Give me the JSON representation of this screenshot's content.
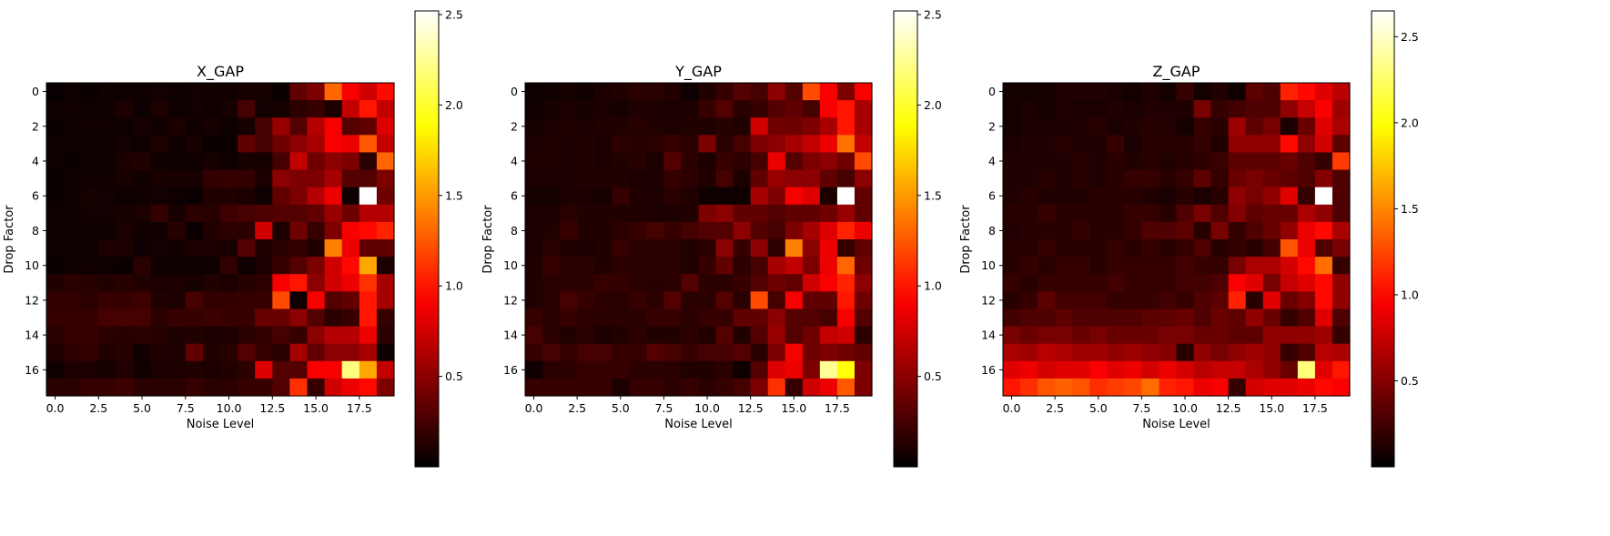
{
  "chart_data": [
    {
      "type": "heatmap",
      "title": "X_GAP",
      "xlabel": "Noise Level",
      "ylabel": "Drop Factor",
      "x_ticks": [
        "0.0",
        "2.5",
        "5.0",
        "7.5",
        "10.0",
        "12.5",
        "15.0",
        "17.5"
      ],
      "y_ticks": [
        "0",
        "2",
        "4",
        "6",
        "8",
        "10",
        "12",
        "14",
        "16"
      ],
      "colormap": "hot",
      "colorbar": {
        "min": 0.0,
        "max": 2.52,
        "ticks": [
          "0.5",
          "1.0",
          "1.5",
          "2.0",
          "2.5"
        ]
      },
      "values": [
        [
          0.03,
          0.05,
          0.04,
          0.06,
          0.05,
          0.05,
          0.07,
          0.05,
          0.07,
          0.06,
          0.06,
          0.09,
          0.08,
          0.04,
          0.35,
          0.45,
          1.3,
          0.9,
          0.75,
          0.95
        ],
        [
          0.05,
          0.06,
          0.05,
          0.06,
          0.1,
          0.05,
          0.1,
          0.05,
          0.07,
          0.05,
          0.08,
          0.25,
          0.07,
          0.08,
          0.15,
          0.2,
          0.1,
          0.7,
          1.0,
          0.7
        ],
        [
          0.04,
          0.05,
          0.06,
          0.06,
          0.05,
          0.08,
          0.05,
          0.1,
          0.05,
          0.08,
          0.05,
          0.08,
          0.25,
          0.55,
          0.3,
          0.65,
          0.9,
          0.3,
          0.35,
          0.8
        ],
        [
          0.05,
          0.05,
          0.05,
          0.05,
          0.07,
          0.05,
          0.1,
          0.05,
          0.08,
          0.04,
          0.04,
          0.35,
          0.25,
          0.4,
          0.5,
          0.6,
          0.9,
          0.85,
          1.25,
          0.7
        ],
        [
          0.05,
          0.04,
          0.05,
          0.05,
          0.1,
          0.12,
          0.06,
          0.05,
          0.05,
          0.08,
          0.05,
          0.08,
          0.08,
          0.25,
          0.7,
          0.4,
          0.5,
          0.45,
          0.15,
          1.3
        ],
        [
          0.04,
          0.05,
          0.06,
          0.06,
          0.08,
          0.06,
          0.09,
          0.09,
          0.08,
          0.18,
          0.2,
          0.18,
          0.1,
          0.5,
          0.45,
          0.45,
          0.6,
          0.3,
          0.3,
          0.45
        ],
        [
          0.04,
          0.05,
          0.08,
          0.07,
          0.05,
          0.06,
          0.07,
          0.05,
          0.04,
          0.12,
          0.12,
          0.1,
          0.05,
          0.35,
          0.45,
          0.65,
          0.85,
          0.05,
          2.52,
          0.4
        ],
        [
          0.05,
          0.05,
          0.07,
          0.07,
          0.08,
          0.1,
          0.18,
          0.08,
          0.16,
          0.14,
          0.22,
          0.25,
          0.28,
          0.3,
          0.3,
          0.35,
          0.55,
          0.4,
          0.65,
          0.65
        ],
        [
          0.05,
          0.05,
          0.05,
          0.05,
          0.1,
          0.06,
          0.06,
          0.14,
          0.04,
          0.12,
          0.16,
          0.16,
          0.75,
          0.1,
          0.4,
          0.2,
          0.45,
          0.9,
          0.95,
          1.05
        ],
        [
          0.05,
          0.05,
          0.05,
          0.1,
          0.1,
          0.05,
          0.07,
          0.06,
          0.1,
          0.1,
          0.08,
          0.3,
          0.12,
          0.15,
          0.18,
          0.12,
          1.4,
          0.85,
          0.35,
          0.35
        ],
        [
          0.04,
          0.05,
          0.06,
          0.05,
          0.04,
          0.15,
          0.06,
          0.05,
          0.05,
          0.05,
          0.18,
          0.05,
          0.1,
          0.2,
          0.3,
          0.45,
          0.75,
          0.95,
          1.55,
          0.1
        ],
        [
          0.12,
          0.15,
          0.14,
          0.12,
          0.14,
          0.12,
          0.1,
          0.1,
          0.08,
          0.12,
          0.1,
          0.14,
          0.16,
          0.9,
          1.0,
          0.5,
          0.75,
          0.85,
          1.1,
          0.6
        ],
        [
          0.18,
          0.18,
          0.15,
          0.2,
          0.2,
          0.22,
          0.12,
          0.1,
          0.25,
          0.18,
          0.18,
          0.2,
          0.2,
          1.2,
          0.05,
          0.9,
          0.3,
          0.35,
          1.0,
          0.6
        ],
        [
          0.2,
          0.2,
          0.2,
          0.25,
          0.25,
          0.25,
          0.15,
          0.2,
          0.2,
          0.22,
          0.2,
          0.2,
          0.38,
          0.38,
          0.5,
          0.3,
          0.15,
          0.2,
          1.0,
          0.2
        ],
        [
          0.15,
          0.2,
          0.2,
          0.15,
          0.14,
          0.15,
          0.14,
          0.1,
          0.12,
          0.1,
          0.1,
          0.15,
          0.18,
          0.25,
          0.2,
          0.5,
          0.65,
          0.65,
          0.85,
          0.15
        ],
        [
          0.12,
          0.16,
          0.18,
          0.12,
          0.14,
          0.06,
          0.12,
          0.1,
          0.35,
          0.12,
          0.14,
          0.3,
          0.2,
          0.15,
          0.6,
          0.35,
          0.5,
          0.5,
          0.6,
          0.05
        ],
        [
          0.05,
          0.1,
          0.1,
          0.08,
          0.12,
          0.06,
          0.1,
          0.1,
          0.12,
          0.1,
          0.12,
          0.15,
          0.8,
          0.3,
          0.3,
          0.9,
          0.9,
          2.2,
          1.55,
          0.7
        ],
        [
          0.15,
          0.15,
          0.2,
          0.2,
          0.22,
          0.15,
          0.15,
          0.15,
          0.2,
          0.15,
          0.15,
          0.2,
          0.2,
          0.3,
          1.1,
          0.2,
          0.75,
          0.85,
          0.95,
          0.45
        ]
      ]
    },
    {
      "type": "heatmap",
      "title": "Y_GAP",
      "xlabel": "Noise Level",
      "ylabel": "Drop Factor",
      "x_ticks": [
        "0.0",
        "2.5",
        "5.0",
        "7.5",
        "10.0",
        "12.5",
        "15.0",
        "17.5"
      ],
      "y_ticks": [
        "0",
        "2",
        "4",
        "6",
        "8",
        "10",
        "12",
        "14",
        "16"
      ],
      "colormap": "hot",
      "colorbar": {
        "min": 0.0,
        "max": 2.52,
        "ticks": [
          "0.5",
          "1.0",
          "1.5",
          "2.0",
          "2.5"
        ]
      },
      "values": [
        [
          0.05,
          0.06,
          0.08,
          0.06,
          0.1,
          0.12,
          0.15,
          0.15,
          0.12,
          0.05,
          0.12,
          0.2,
          0.3,
          0.25,
          0.5,
          0.3,
          1.2,
          0.9,
          0.45,
          0.9
        ],
        [
          0.06,
          0.08,
          0.1,
          0.08,
          0.1,
          0.08,
          0.12,
          0.1,
          0.1,
          0.1,
          0.2,
          0.3,
          0.15,
          0.2,
          0.3,
          0.35,
          0.25,
          0.9,
          1.0,
          0.6
        ],
        [
          0.08,
          0.1,
          0.12,
          0.1,
          0.12,
          0.12,
          0.14,
          0.12,
          0.1,
          0.12,
          0.12,
          0.14,
          0.12,
          0.75,
          0.4,
          0.4,
          0.45,
          0.6,
          1.0,
          0.6
        ],
        [
          0.1,
          0.12,
          0.1,
          0.12,
          0.1,
          0.15,
          0.14,
          0.15,
          0.2,
          0.16,
          0.45,
          0.15,
          0.25,
          0.45,
          0.5,
          0.6,
          0.7,
          0.85,
          1.35,
          0.7
        ],
        [
          0.12,
          0.12,
          0.1,
          0.12,
          0.1,
          0.12,
          0.14,
          0.1,
          0.3,
          0.15,
          0.1,
          0.2,
          0.15,
          0.25,
          0.85,
          0.3,
          0.45,
          0.5,
          0.4,
          1.2
        ],
        [
          0.1,
          0.1,
          0.1,
          0.12,
          0.12,
          0.12,
          0.1,
          0.1,
          0.2,
          0.16,
          0.12,
          0.25,
          0.1,
          0.35,
          0.55,
          0.5,
          0.5,
          0.35,
          0.25,
          0.5
        ],
        [
          0.08,
          0.08,
          0.1,
          0.1,
          0.08,
          0.2,
          0.12,
          0.1,
          0.15,
          0.12,
          0.05,
          0.05,
          0.05,
          0.6,
          0.45,
          0.9,
          0.8,
          0.1,
          2.52,
          0.35
        ],
        [
          0.1,
          0.1,
          0.15,
          0.12,
          0.12,
          0.12,
          0.12,
          0.1,
          0.1,
          0.12,
          0.45,
          0.5,
          0.35,
          0.35,
          0.3,
          0.35,
          0.35,
          0.4,
          0.55,
          0.35
        ],
        [
          0.1,
          0.12,
          0.2,
          0.12,
          0.12,
          0.15,
          0.2,
          0.25,
          0.2,
          0.25,
          0.3,
          0.3,
          0.5,
          0.3,
          0.25,
          0.45,
          0.6,
          0.8,
          1.05,
          0.85
        ],
        [
          0.1,
          0.15,
          0.12,
          0.1,
          0.12,
          0.2,
          0.15,
          0.15,
          0.15,
          0.12,
          0.15,
          0.5,
          0.2,
          0.5,
          0.15,
          1.4,
          0.5,
          0.85,
          0.2,
          0.35
        ],
        [
          0.12,
          0.2,
          0.15,
          0.15,
          0.12,
          0.15,
          0.15,
          0.15,
          0.15,
          0.12,
          0.2,
          0.35,
          0.15,
          0.25,
          0.6,
          0.7,
          0.45,
          0.85,
          1.3,
          0.4
        ],
        [
          0.12,
          0.15,
          0.15,
          0.15,
          0.2,
          0.18,
          0.15,
          0.14,
          0.15,
          0.3,
          0.15,
          0.15,
          0.2,
          0.3,
          0.4,
          0.35,
          0.75,
          0.9,
          1.05,
          0.5
        ],
        [
          0.12,
          0.15,
          0.25,
          0.2,
          0.15,
          0.15,
          0.2,
          0.15,
          0.3,
          0.15,
          0.15,
          0.3,
          0.15,
          1.2,
          0.25,
          0.9,
          0.35,
          0.35,
          1.0,
          0.4
        ],
        [
          0.2,
          0.15,
          0.2,
          0.15,
          0.15,
          0.15,
          0.15,
          0.2,
          0.2,
          0.15,
          0.2,
          0.2,
          0.35,
          0.35,
          0.5,
          0.3,
          0.3,
          0.25,
          0.9,
          0.3
        ],
        [
          0.25,
          0.15,
          0.12,
          0.15,
          0.1,
          0.12,
          0.15,
          0.12,
          0.12,
          0.15,
          0.12,
          0.3,
          0.12,
          0.3,
          0.55,
          0.3,
          0.4,
          0.7,
          0.75,
          0.15
        ],
        [
          0.2,
          0.25,
          0.2,
          0.25,
          0.25,
          0.2,
          0.2,
          0.3,
          0.25,
          0.2,
          0.25,
          0.25,
          0.3,
          0.15,
          0.45,
          0.9,
          0.4,
          0.45,
          0.4,
          0.35
        ],
        [
          0.05,
          0.15,
          0.15,
          0.2,
          0.2,
          0.2,
          0.15,
          0.15,
          0.15,
          0.12,
          0.12,
          0.15,
          0.05,
          0.3,
          0.8,
          0.85,
          0.45,
          2.25,
          1.9,
          0.45
        ],
        [
          0.2,
          0.2,
          0.2,
          0.2,
          0.2,
          0.1,
          0.2,
          0.2,
          0.15,
          0.2,
          0.15,
          0.2,
          0.25,
          0.45,
          1.1,
          0.2,
          0.75,
          0.85,
          1.25,
          0.45
        ]
      ]
    },
    {
      "type": "heatmap",
      "title": "Z_GAP",
      "xlabel": "Noise Level",
      "ylabel": "Drop Factor",
      "x_ticks": [
        "0.0",
        "2.5",
        "5.0",
        "7.5",
        "10.0",
        "12.5",
        "15.0",
        "17.5"
      ],
      "y_ticks": [
        "0",
        "2",
        "4",
        "6",
        "8",
        "10",
        "12",
        "14",
        "16"
      ],
      "colormap": "hot",
      "colorbar": {
        "min": 0.0,
        "max": 2.65,
        "ticks": [
          "0.5",
          "1.0",
          "1.5",
          "2.0",
          "2.5"
        ]
      },
      "values": [
        [
          0.08,
          0.08,
          0.08,
          0.12,
          0.12,
          0.12,
          0.1,
          0.08,
          0.12,
          0.08,
          0.2,
          0.08,
          0.12,
          0.06,
          0.35,
          0.3,
          1.1,
          1.0,
          0.85,
          0.7
        ],
        [
          0.08,
          0.1,
          0.08,
          0.12,
          0.1,
          0.1,
          0.12,
          0.1,
          0.12,
          0.12,
          0.12,
          0.45,
          0.2,
          0.25,
          0.3,
          0.3,
          0.55,
          0.75,
          0.95,
          0.6
        ],
        [
          0.08,
          0.1,
          0.1,
          0.1,
          0.12,
          0.15,
          0.1,
          0.12,
          0.15,
          0.14,
          0.08,
          0.2,
          0.15,
          0.6,
          0.35,
          0.45,
          0.1,
          0.4,
          0.85,
          0.65
        ],
        [
          0.1,
          0.12,
          0.12,
          0.15,
          0.12,
          0.12,
          0.2,
          0.1,
          0.15,
          0.15,
          0.15,
          0.2,
          0.12,
          0.55,
          0.55,
          0.55,
          1.0,
          0.55,
          0.8,
          0.35
        ],
        [
          0.12,
          0.12,
          0.12,
          0.12,
          0.15,
          0.12,
          0.15,
          0.12,
          0.15,
          0.12,
          0.15,
          0.18,
          0.22,
          0.35,
          0.35,
          0.35,
          0.4,
          0.3,
          0.2,
          1.2
        ],
        [
          0.12,
          0.12,
          0.15,
          0.12,
          0.15,
          0.12,
          0.15,
          0.2,
          0.2,
          0.15,
          0.2,
          0.35,
          0.2,
          0.4,
          0.45,
          0.4,
          0.35,
          0.3,
          0.5,
          0.3
        ],
        [
          0.12,
          0.15,
          0.12,
          0.12,
          0.12,
          0.15,
          0.15,
          0.15,
          0.12,
          0.1,
          0.15,
          0.1,
          0.15,
          0.55,
          0.45,
          0.55,
          0.85,
          0.2,
          2.65,
          0.3
        ],
        [
          0.15,
          0.15,
          0.2,
          0.15,
          0.15,
          0.15,
          0.15,
          0.2,
          0.2,
          0.15,
          0.3,
          0.45,
          0.3,
          0.5,
          0.35,
          0.4,
          0.4,
          0.65,
          0.55,
          0.3
        ],
        [
          0.12,
          0.15,
          0.15,
          0.15,
          0.2,
          0.15,
          0.15,
          0.2,
          0.3,
          0.3,
          0.35,
          0.15,
          0.45,
          0.2,
          0.3,
          0.4,
          0.55,
          0.9,
          1.0,
          0.65
        ],
        [
          0.15,
          0.15,
          0.2,
          0.15,
          0.15,
          0.15,
          0.2,
          0.15,
          0.2,
          0.15,
          0.2,
          0.3,
          0.15,
          0.2,
          0.15,
          0.25,
          1.3,
          0.9,
          0.3,
          0.45
        ],
        [
          0.15,
          0.2,
          0.15,
          0.2,
          0.2,
          0.15,
          0.2,
          0.2,
          0.2,
          0.2,
          0.25,
          0.2,
          0.2,
          0.45,
          0.65,
          0.65,
          0.8,
          1.0,
          1.4,
          0.2
        ],
        [
          0.2,
          0.15,
          0.2,
          0.2,
          0.2,
          0.2,
          0.25,
          0.2,
          0.2,
          0.2,
          0.25,
          0.25,
          0.3,
          0.95,
          0.85,
          0.45,
          0.75,
          0.85,
          1.0,
          0.55
        ],
        [
          0.15,
          0.2,
          0.35,
          0.25,
          0.25,
          0.25,
          0.2,
          0.2,
          0.2,
          0.25,
          0.2,
          0.3,
          0.35,
          1.1,
          0.15,
          0.85,
          0.4,
          0.5,
          1.0,
          0.55
        ],
        [
          0.25,
          0.3,
          0.3,
          0.35,
          0.3,
          0.3,
          0.3,
          0.3,
          0.35,
          0.35,
          0.4,
          0.3,
          0.4,
          0.35,
          0.55,
          0.4,
          0.2,
          0.3,
          0.85,
          0.3
        ],
        [
          0.45,
          0.4,
          0.45,
          0.45,
          0.4,
          0.45,
          0.4,
          0.4,
          0.4,
          0.45,
          0.45,
          0.4,
          0.4,
          0.35,
          0.35,
          0.55,
          0.55,
          0.55,
          0.6,
          0.2
        ],
        [
          0.65,
          0.6,
          0.7,
          0.65,
          0.6,
          0.6,
          0.55,
          0.6,
          0.55,
          0.5,
          0.15,
          0.55,
          0.45,
          0.55,
          0.6,
          0.55,
          0.2,
          0.3,
          0.7,
          0.65
        ],
        [
          0.85,
          0.9,
          0.8,
          0.85,
          0.85,
          0.95,
          0.85,
          0.9,
          0.8,
          0.9,
          0.8,
          0.7,
          0.75,
          0.75,
          0.65,
          0.55,
          0.4,
          2.3,
          0.85,
          1.05
        ],
        [
          1.05,
          1.15,
          1.3,
          1.35,
          1.3,
          1.15,
          1.2,
          1.25,
          1.4,
          1.1,
          1.05,
          0.9,
          0.95,
          0.2,
          0.8,
          0.85,
          0.85,
          0.9,
          1.0,
          0.95
        ]
      ]
    }
  ]
}
